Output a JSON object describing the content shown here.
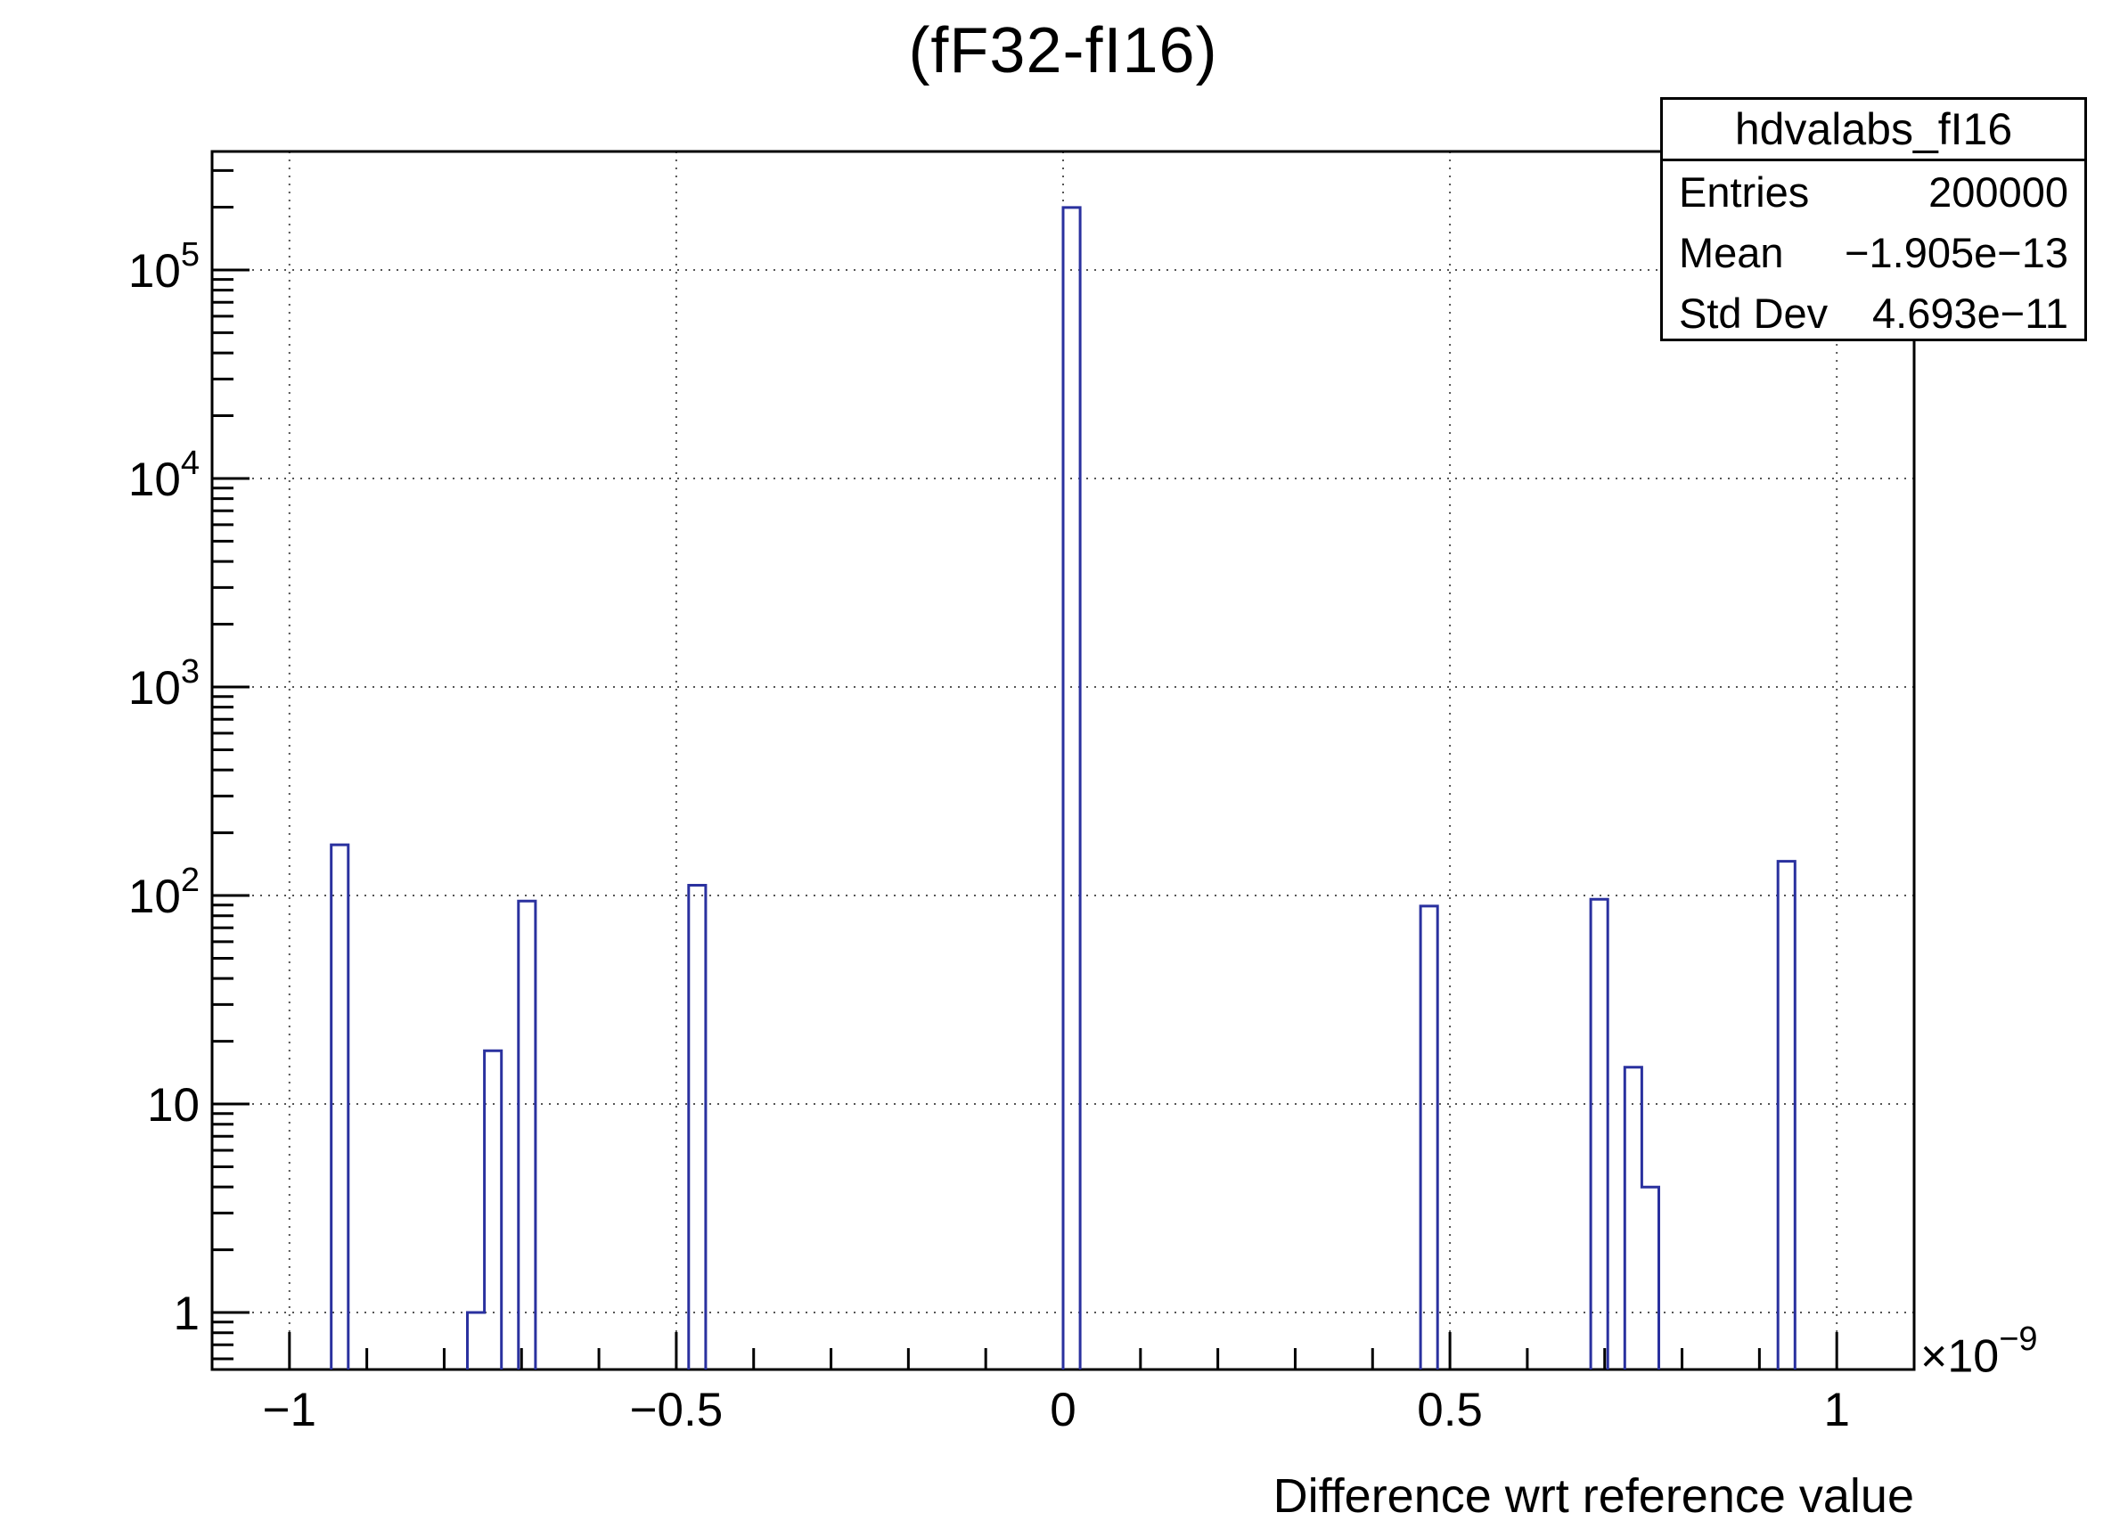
{
  "title": "(fF32-fI16)",
  "stats_box": {
    "title": "hdvalabs_fI16",
    "rows": [
      {
        "label": "Entries",
        "value": "200000"
      },
      {
        "label": "Mean",
        "value": "−1.905e−13"
      },
      {
        "label": "Std Dev",
        "value": "4.693e−11"
      }
    ]
  },
  "chart_data": {
    "type": "bar",
    "subtype": "histogram-step-outline",
    "title": "(fF32-fI16)",
    "xlabel": "Difference wrt reference value",
    "ylabel": "",
    "grid": true,
    "legend_position": "none",
    "x_axis": {
      "min": -1.1,
      "max": 1.1,
      "unit_scale": 1e-09,
      "exp_prefix": "×10",
      "exp_sup": "−9",
      "major_ticks": [
        {
          "v": -1,
          "label": "−1"
        },
        {
          "v": -0.5,
          "label": "−0.5"
        },
        {
          "v": 0,
          "label": "0"
        },
        {
          "v": 0.5,
          "label": "0.5"
        },
        {
          "v": 1,
          "label": "1"
        }
      ],
      "minor_tick_step": 0.1
    },
    "y_axis": {
      "scale": "log",
      "min": 0.533,
      "max": 370000,
      "decade_ticks": [
        {
          "v": 1,
          "base": "1",
          "sup": ""
        },
        {
          "v": 10,
          "base": "10",
          "sup": ""
        },
        {
          "v": 100,
          "base": "10",
          "sup": "2"
        },
        {
          "v": 1000,
          "base": "10",
          "sup": "3"
        },
        {
          "v": 10000,
          "base": "10",
          "sup": "4"
        },
        {
          "v": 100000,
          "base": "10",
          "sup": "5"
        }
      ]
    },
    "bin_width": 0.022,
    "bins": [
      {
        "x0": -0.946,
        "x1": -0.924,
        "count": 175
      },
      {
        "x0": -0.77,
        "x1": -0.748,
        "count": 1
      },
      {
        "x0": -0.748,
        "x1": -0.726,
        "count": 18
      },
      {
        "x0": -0.704,
        "x1": -0.682,
        "count": 94
      },
      {
        "x0": -0.484,
        "x1": -0.462,
        "count": 112
      },
      {
        "x0": 0.0,
        "x1": 0.022,
        "count": 199250
      },
      {
        "x0": 0.462,
        "x1": 0.484,
        "count": 89
      },
      {
        "x0": 0.682,
        "x1": 0.704,
        "count": 96
      },
      {
        "x0": 0.726,
        "x1": 0.748,
        "count": 15
      },
      {
        "x0": 0.748,
        "x1": 0.77,
        "count": 4
      },
      {
        "x0": 0.924,
        "x1": 0.946,
        "count": 146
      }
    ],
    "colors": {
      "line": "#2a319f",
      "grid": "#555555",
      "frame": "#000000",
      "background": "#ffffff"
    }
  }
}
